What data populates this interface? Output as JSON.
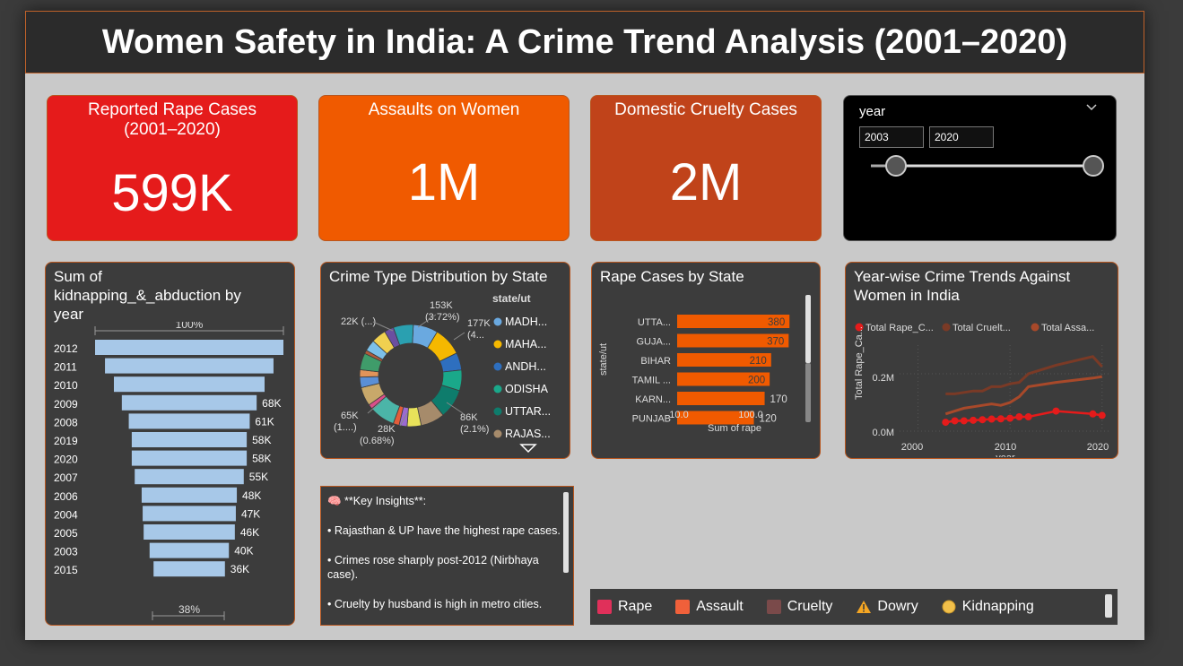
{
  "header": {
    "title": "Women Safety in India: A Crime Trend Analysis (2001–2020)"
  },
  "kpis": [
    {
      "label_line1": "Reported Rape Cases",
      "label_line2": "(2001–2020)",
      "value": "599K",
      "color": "#e51b1b"
    },
    {
      "label_line1": "Assaults on Women",
      "label_line2": "",
      "value": "1M",
      "color": "#f05a00"
    },
    {
      "label_line1": "Domestic Cruelty Cases",
      "label_line2": "",
      "value": "2M",
      "color": "#c0431a"
    }
  ],
  "slicer": {
    "title": "year",
    "from": "2003",
    "to": "2020",
    "min": 2003,
    "max": 2020,
    "low": 2003,
    "high": 2020
  },
  "funnel": {
    "title": "Sum of kidnapping_&_abduction by year",
    "top_label": "100%",
    "bottom_label": "38%",
    "bar_color": "#a7c8e8"
  },
  "donut": {
    "title": "Crime Type Distribution by State",
    "legend_title": "state/ut",
    "labels": {
      "top": "153K",
      "top_pct": "(3.72%)",
      "tr": "177K",
      "tr_pct": "(4...",
      "tl": "22K (...)",
      "right": "86K",
      "right_pct": "(2.1%)",
      "left": "65K",
      "left_pct": "(1....)",
      "bottom": "28K",
      "bottom_pct": "(0.68%)"
    },
    "legend": [
      {
        "name": "MADH...",
        "color": "#6aa9e0"
      },
      {
        "name": "MAHA...",
        "color": "#f5b800"
      },
      {
        "name": "ANDH...",
        "color": "#2e6fbf"
      },
      {
        "name": "ODISHA",
        "color": "#1aa88a"
      },
      {
        "name": "UTTAR...",
        "color": "#0e7c6c"
      },
      {
        "name": "RAJAS...",
        "color": "#a68b6b"
      }
    ]
  },
  "state_bar": {
    "title": "Rape Cases by State",
    "y_axis_title": "state/ut",
    "x_axis_title": "Sum of rape",
    "x_ticks": [
      "10.0",
      "100.0"
    ],
    "bar_color": "#f05a00"
  },
  "line": {
    "title": "Year-wise Crime Trends Against Women in India",
    "legend": [
      {
        "name": "Total Rape_C...",
        "color": "#e51b1b"
      },
      {
        "name": "Total Cruelt...",
        "color": "#7a3a26"
      },
      {
        "name": "Total Assa...",
        "color": "#a8492a"
      }
    ],
    "y_title": "Total Rape_Ca...",
    "x_title": "year",
    "y_ticks": [
      "0.2M",
      "0.0M"
    ],
    "x_ticks": [
      "2000",
      "2010",
      "2020"
    ]
  },
  "insights": {
    "heading": "🧠 **Key Insights**:",
    "items": [
      "• Rajasthan & UP have the highest rape cases.",
      "• Crimes rose sharply post-2012 (Nirbhaya case).",
      "• Cruelty by husband is high in metro cities."
    ]
  },
  "legend_bar": [
    {
      "label": "Rape",
      "color": "#e0305a",
      "shape": "square"
    },
    {
      "label": "Assault",
      "color": "#f0603a",
      "shape": "square"
    },
    {
      "label": "Cruelty",
      "color": "#7a4a4a",
      "shape": "square"
    },
    {
      "label": "Dowry",
      "color": "#f5a623",
      "shape": "warning-icon"
    },
    {
      "label": "Kidnapping",
      "color": "#f2c04a",
      "shape": "circle"
    }
  ],
  "chart_data": [
    {
      "type": "bar",
      "title": "Sum of kidnapping_&_abduction by year",
      "categories": [
        "2012",
        "2011",
        "2010",
        "2009",
        "2008",
        "2019",
        "2020",
        "2007",
        "2006",
        "2004",
        "2005",
        "2003",
        "2015"
      ],
      "values": [
        95,
        85,
        76,
        68,
        61,
        58,
        58,
        55,
        48,
        47,
        46,
        40,
        36
      ],
      "value_labels": [
        "",
        "",
        "",
        "68K",
        "61K",
        "58K",
        "58K",
        "55K",
        "48K",
        "47K",
        "46K",
        "40K",
        "36K"
      ],
      "unit": "K"
    },
    {
      "type": "pie",
      "title": "Crime Type Distribution by State",
      "slices": [
        {
          "label": "153K (3.72%)",
          "value": 3.72
        },
        {
          "label": "177K (4...",
          "value": 4.3
        },
        {
          "label": "86K (2.1%)",
          "value": 2.1
        },
        {
          "label": "28K (0.68%)",
          "value": 0.68
        },
        {
          "label": "65K (1....)",
          "value": 1.58
        },
        {
          "label": "22K (...)",
          "value": 0.53
        }
      ]
    },
    {
      "type": "bar",
      "title": "Rape Cases by State",
      "categories": [
        "UTTA...",
        "GUJA...",
        "BIHAR",
        "TAMIL ...",
        "KARN...",
        "PUNJAB"
      ],
      "values": [
        380,
        370,
        210,
        200,
        170,
        120
      ],
      "xlabel": "Sum of rape",
      "ylabel": "state/ut",
      "xscale": "log",
      "xlim": [
        10,
        400
      ]
    },
    {
      "type": "line",
      "title": "Year-wise Crime Trends Against Women in India",
      "x": [
        2003,
        2004,
        2005,
        2006,
        2007,
        2008,
        2009,
        2010,
        2011,
        2012,
        2015,
        2019,
        2020
      ],
      "series": [
        {
          "name": "Total Rape_C...",
          "values": [
            0.031,
            0.036,
            0.036,
            0.038,
            0.04,
            0.042,
            0.043,
            0.045,
            0.05,
            0.05,
            0.07,
            0.06,
            0.055
          ]
        },
        {
          "name": "Total Cruelt...",
          "values": [
            0.13,
            0.13,
            0.135,
            0.14,
            0.14,
            0.155,
            0.155,
            0.165,
            0.17,
            0.2,
            0.23,
            0.26,
            0.225
          ]
        },
        {
          "name": "Total Assa...",
          "values": [
            0.06,
            0.07,
            0.08,
            0.085,
            0.09,
            0.095,
            0.09,
            0.1,
            0.12,
            0.155,
            0.17,
            0.185,
            0.19
          ]
        }
      ],
      "xlabel": "year",
      "ylabel": "Total Rape_Ca...",
      "xlim": [
        1998,
        2021
      ],
      "ylim": [
        0,
        0.3
      ]
    }
  ]
}
